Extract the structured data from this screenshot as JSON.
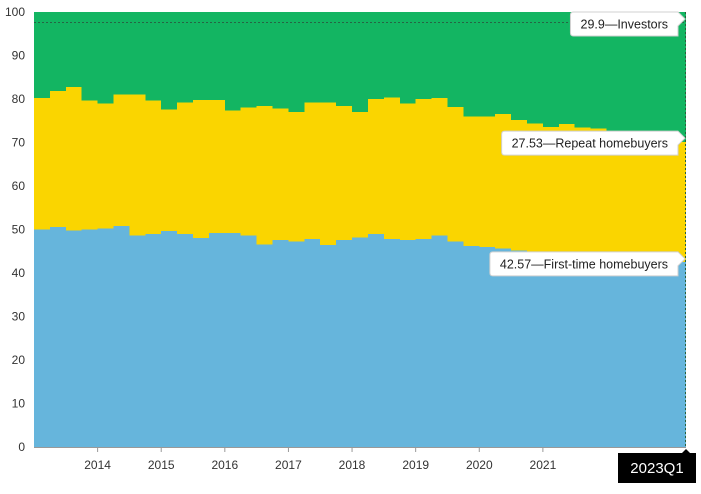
{
  "chart_data": {
    "type": "area",
    "stacked": true,
    "x_start": "2013Q1",
    "x_end": "2023Q1",
    "x_tick_labels": [
      "2014",
      "2015",
      "2016",
      "2017",
      "2018",
      "2019",
      "2020",
      "2021"
    ],
    "y_tick_labels": [
      "0",
      "10",
      "20",
      "30",
      "40",
      "50",
      "60",
      "70",
      "80",
      "90",
      "100"
    ],
    "ylim": [
      0,
      100
    ],
    "title": "",
    "xlabel": "",
    "ylabel": "",
    "grid": false,
    "colors": {
      "first_time": "#66b5dc",
      "repeat": "#fad500",
      "investors": "#13b562"
    },
    "series": [
      {
        "name": "First-time homebuyers",
        "values": [
          50.0,
          50.6,
          49.8,
          50.0,
          50.2,
          50.8,
          48.6,
          49.0,
          49.6,
          49.0,
          48.0,
          49.2,
          49.2,
          48.6,
          46.6,
          47.6,
          47.2,
          47.8,
          46.4,
          47.6,
          48.2,
          49.0,
          47.8,
          47.6,
          47.8,
          48.6,
          47.2,
          46.2,
          46.0,
          45.6,
          45.2,
          44.8,
          44.6,
          44.2,
          43.8,
          43.4,
          43.2,
          43.0,
          42.8,
          42.7,
          42.57
        ]
      },
      {
        "name": "Repeat homebuyers",
        "values": [
          30.2,
          31.2,
          33.0,
          29.6,
          28.8,
          30.2,
          32.4,
          30.6,
          28.0,
          30.2,
          31.8,
          30.6,
          28.2,
          29.4,
          31.8,
          30.2,
          29.8,
          31.4,
          32.8,
          30.8,
          28.8,
          31.0,
          32.6,
          31.4,
          32.2,
          31.6,
          31.0,
          29.8,
          30.0,
          31.0,
          30.0,
          29.6,
          29.0,
          30.0,
          29.6,
          29.8,
          29.3,
          28.5,
          28.2,
          27.8,
          27.53
        ]
      },
      {
        "name": "Investors",
        "values": [
          19.8,
          18.2,
          17.2,
          20.4,
          21.0,
          19.0,
          19.0,
          20.4,
          22.4,
          20.8,
          20.2,
          20.2,
          22.6,
          22.0,
          21.6,
          22.2,
          23.0,
          20.8,
          20.8,
          21.6,
          23.0,
          20.0,
          19.6,
          21.0,
          20.0,
          19.8,
          21.8,
          24.0,
          24.0,
          23.4,
          24.8,
          25.6,
          26.4,
          25.8,
          26.6,
          26.8,
          27.5,
          28.5,
          29.0,
          29.5,
          29.9
        ]
      }
    ],
    "end_labels": [
      "29.9—Investors",
      "27.53—Repeat homebuyers",
      "42.57—First-time homebuyers"
    ],
    "highlight_label": "2023Q1"
  }
}
